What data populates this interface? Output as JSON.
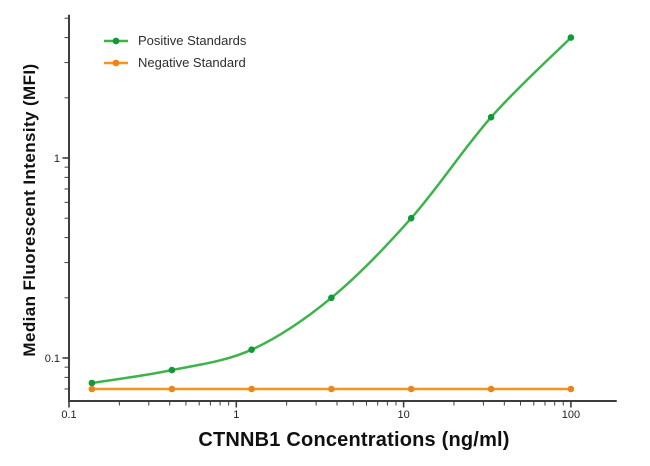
{
  "figure": {
    "background": "#ffffff",
    "axis_color": "#3d3d3d",
    "tick_label_color": "#1f1f1f"
  },
  "legend": {
    "items": [
      {
        "id": "positive",
        "label": "Positive Standards",
        "line_color": "#3cb44b",
        "marker_color": "#0f9a38"
      },
      {
        "id": "negative",
        "label": "Negative Standard",
        "line_color": "#f7941e",
        "marker_color": "#ee8418"
      }
    ]
  },
  "chart_data": {
    "type": "line",
    "title": "",
    "xlabel": "CTNNB1 Concentrations (ng/ml)",
    "ylabel": "Median Fluorescent Intensity (MFI)",
    "x_scale": "log",
    "y_scale": "log",
    "xlim": [
      0.1,
      188
    ],
    "ylim": [
      0.062,
      5.2
    ],
    "x_major_ticks": [
      0.1,
      1,
      10,
      100
    ],
    "x_major_tick_labels": [
      "0.1",
      "1",
      "10",
      "100"
    ],
    "y_major_ticks": [
      0.1,
      1
    ],
    "y_major_tick_labels": [
      "0.1",
      "1"
    ],
    "grid": false,
    "legend_position": "upper-left-inside",
    "x": [
      0.137,
      0.412,
      1.235,
      3.704,
      11.11,
      33.33,
      100
    ],
    "series": [
      {
        "name": "Positive Standards",
        "color": "#3cb44b",
        "marker_color": "#0f9a38",
        "smooth": true,
        "y": [
          0.075,
          0.087,
          0.11,
          0.2,
          0.5,
          1.6,
          4.0
        ]
      },
      {
        "name": "Negative Standard",
        "color": "#f7941e",
        "marker_color": "#ee8418",
        "smooth": false,
        "y": [
          0.07,
          0.07,
          0.07,
          0.07,
          0.07,
          0.07,
          0.07
        ]
      }
    ]
  }
}
